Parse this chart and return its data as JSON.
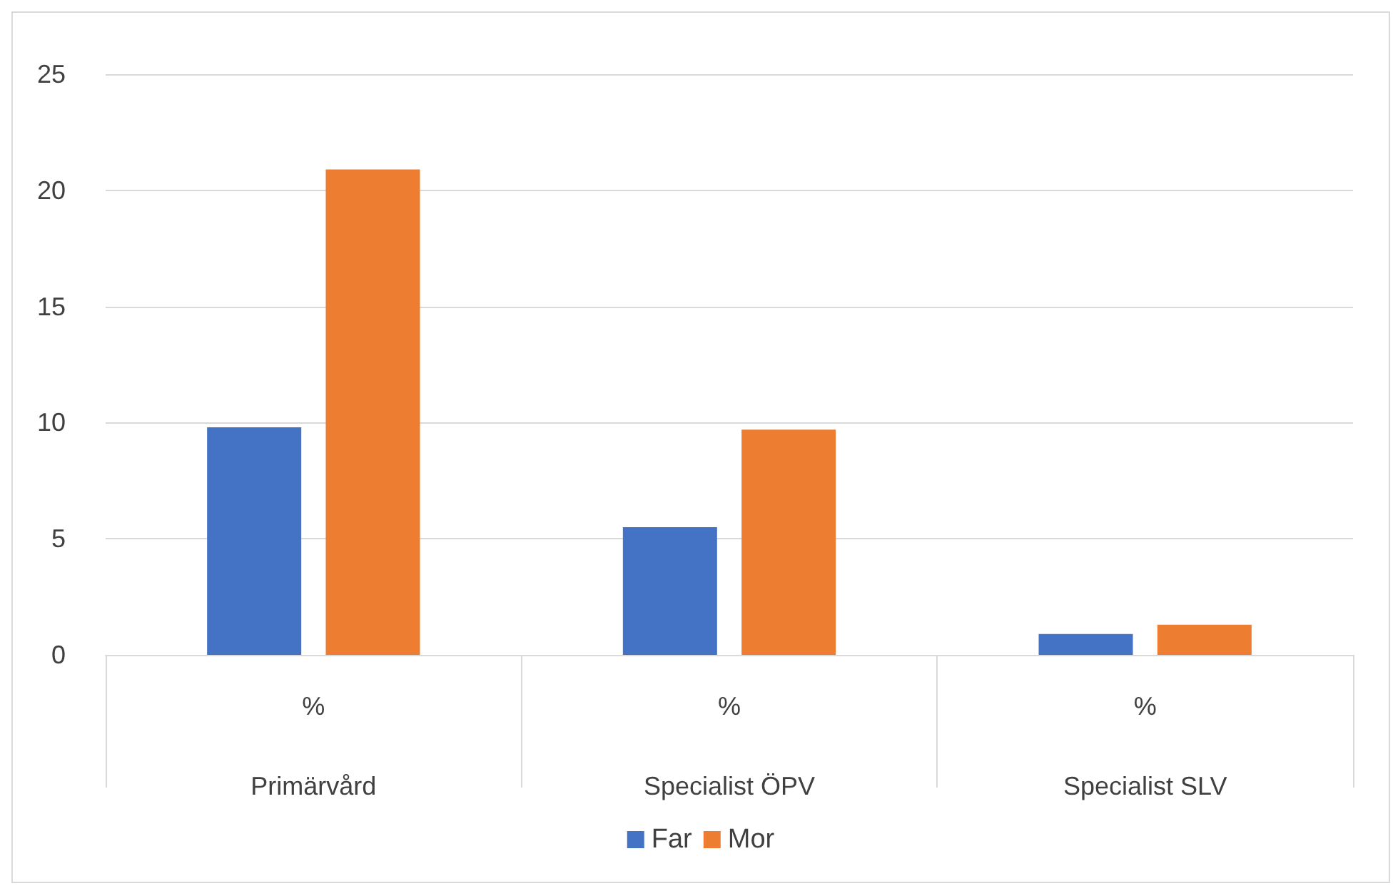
{
  "chart_data": {
    "type": "bar",
    "categories": [
      "%\nPrimärvård",
      "%\nSpecialist ÖPV",
      "%\nSpecialist SLV"
    ],
    "series": [
      {
        "name": "Far",
        "color": "#4472c4",
        "values": [
          9.8,
          5.5,
          0.9
        ]
      },
      {
        "name": "Mor",
        "color": "#ed7d31",
        "values": [
          20.9,
          9.7,
          1.3
        ]
      }
    ],
    "ylim": [
      0,
      25
    ],
    "yticks": [
      0,
      5,
      10,
      15,
      20,
      25
    ],
    "grid": "y",
    "legend": "bottom"
  }
}
